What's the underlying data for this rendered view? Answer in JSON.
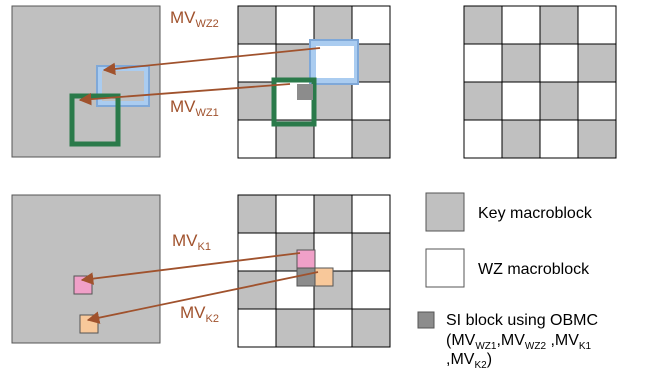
{
  "colors": {
    "key_block": "#c0c0c0",
    "wz_block": "#ffffff",
    "si_block": "#8c8c8c",
    "grid_line": "#000000",
    "frame_border": "#555555",
    "mv_arrow": "#a0522d",
    "mv_label": "#a0522d",
    "blue_block": "#aaccf0",
    "blue_block_border": "#7fa8d8",
    "green_block_border": "#2a7a4a",
    "pink_block": "#f0a0c8",
    "peach_block": "#f8c89a"
  },
  "top_row": {
    "mv_wz2": {
      "main": "MV",
      "sub": "WZ2"
    },
    "mv_wz1": {
      "main": "MV",
      "sub": "WZ1"
    }
  },
  "bottom_row": {
    "mv_k1": {
      "main": "MV",
      "sub": "K1"
    },
    "mv_k2": {
      "main": "MV",
      "sub": "K2"
    }
  },
  "legend": {
    "key_label": "Key macroblock",
    "wz_label": "WZ macroblock",
    "si_line1": "SI block using OBMC",
    "si_line2": {
      "open": "(",
      "mv": "MV",
      "wz1": "WZ1",
      "wz2": "WZ2",
      "k1": "K1",
      "k2": "K2",
      "comma": ",",
      "comma_space": " ,",
      "close": ")"
    }
  },
  "icons": {
    "arrow_head": "arrowhead-icon"
  }
}
